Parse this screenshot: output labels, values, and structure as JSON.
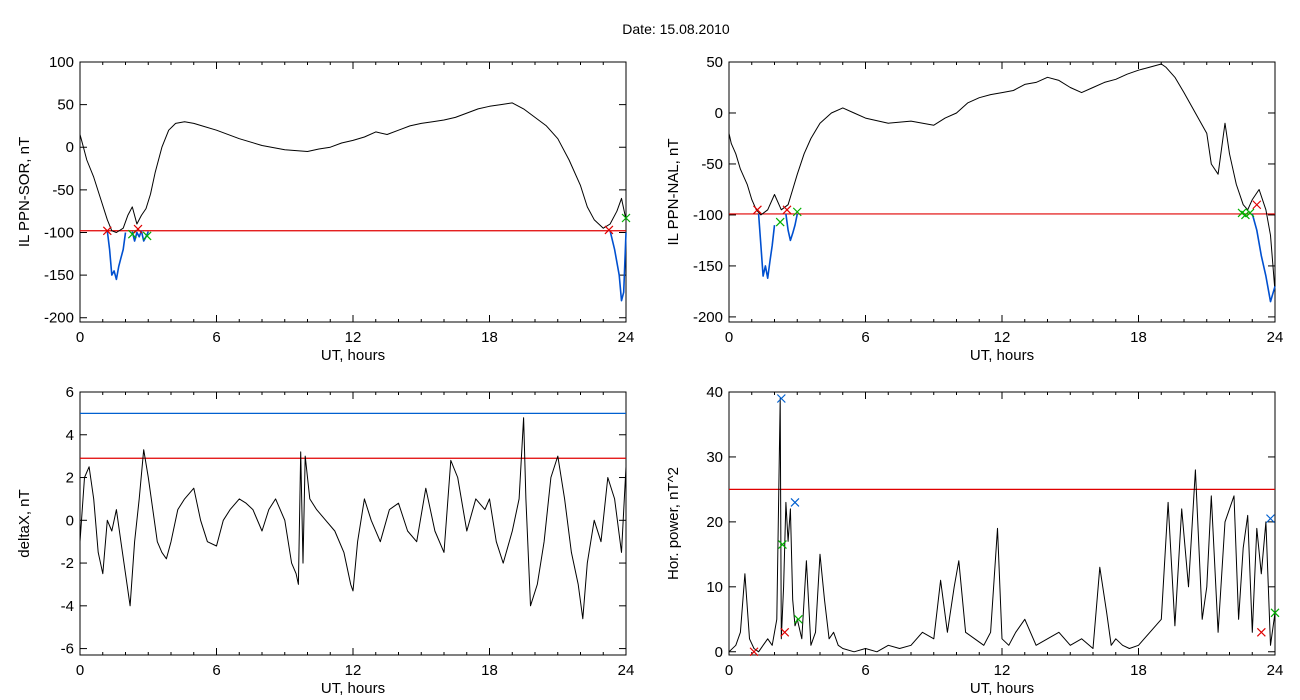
{
  "figure": {
    "title": "Date:  15.08.2010"
  },
  "chart_data": [
    {
      "type": "line",
      "ylabel": "IL PPN-SOR, nT",
      "xlabel": "UT, hours",
      "xlim": [
        0,
        24
      ],
      "ylim": [
        -205,
        100
      ],
      "xticks": [
        0,
        6,
        12,
        18,
        24
      ],
      "yticks": [
        100,
        50,
        0,
        -50,
        -100,
        -150,
        -200
      ],
      "hlines": [
        {
          "y": -98,
          "color": "#e00000"
        }
      ],
      "series": [
        {
          "color": "#000000",
          "x": [
            0,
            0.1,
            0.3,
            0.6,
            0.9,
            1.2,
            1.4,
            1.6,
            1.9,
            2.1,
            2.3,
            2.5,
            2.7,
            2.9,
            3.1,
            3.3,
            3.6,
            3.9,
            4.2,
            4.6,
            5,
            6,
            7,
            8,
            9,
            10,
            10.5,
            11,
            11.5,
            12,
            12.5,
            13,
            13.5,
            14,
            14.5,
            15,
            15.5,
            16,
            16.5,
            17,
            17.5,
            18,
            18.5,
            19,
            19.5,
            20,
            20.5,
            21,
            21.5,
            22,
            22.3,
            22.6,
            23,
            23.3,
            23.6,
            23.8,
            24
          ],
          "y": [
            15,
            5,
            -15,
            -35,
            -60,
            -85,
            -98,
            -100,
            -95,
            -80,
            -70,
            -90,
            -80,
            -72,
            -55,
            -30,
            0,
            20,
            28,
            30,
            28,
            20,
            10,
            2,
            -3,
            -5,
            -2,
            0,
            5,
            8,
            12,
            18,
            15,
            20,
            25,
            28,
            30,
            32,
            35,
            40,
            45,
            48,
            50,
            52,
            45,
            35,
            25,
            10,
            -15,
            -45,
            -70,
            -85,
            -95,
            -90,
            -75,
            -60,
            -85
          ]
        },
        {
          "color": "#0050d0",
          "x": [
            1.2,
            1.3,
            1.4,
            1.5,
            1.6,
            1.7,
            1.8,
            1.9,
            2.0
          ],
          "y": [
            -98,
            -120,
            -150,
            -145,
            -155,
            -140,
            -130,
            -120,
            -100
          ]
        },
        {
          "color": "#0050d0",
          "x": [
            2.3,
            2.4,
            2.5,
            2.6,
            2.7
          ],
          "y": [
            -99,
            -110,
            -100,
            -105,
            -98
          ]
        },
        {
          "color": "#0050d0",
          "x": [
            2.7,
            2.8,
            2.9,
            3.0
          ],
          "y": [
            -98,
            -110,
            -105,
            -99
          ]
        },
        {
          "color": "#0050d0",
          "x": [
            23.3,
            23.5,
            23.7,
            23.8,
            23.9,
            24
          ],
          "y": [
            -98,
            -120,
            -150,
            -180,
            -170,
            -100
          ]
        }
      ],
      "markers": [
        {
          "x": 1.2,
          "y": -98,
          "color": "#e00000"
        },
        {
          "x": 2.3,
          "y": -102,
          "color": "#00b000"
        },
        {
          "x": 2.55,
          "y": -96,
          "color": "#e00000"
        },
        {
          "x": 2.95,
          "y": -104,
          "color": "#00b000"
        },
        {
          "x": 23.25,
          "y": -97,
          "color": "#e00000"
        },
        {
          "x": 24,
          "y": -83,
          "color": "#00b000"
        }
      ]
    },
    {
      "type": "line",
      "ylabel": "IL PPN-NAL, nT",
      "xlabel": "UT, hours",
      "xlim": [
        0,
        24
      ],
      "ylim": [
        -205,
        50
      ],
      "xticks": [
        0,
        6,
        12,
        18,
        24
      ],
      "yticks": [
        50,
        0,
        -50,
        -100,
        -150,
        -200
      ],
      "hlines": [
        {
          "y": -99,
          "color": "#e00000"
        }
      ],
      "series": [
        {
          "color": "#000000",
          "x": [
            0,
            0.1,
            0.3,
            0.5,
            0.8,
            1.0,
            1.2,
            1.4,
            1.7,
            2.0,
            2.3,
            2.6,
            2.8,
            3.0,
            3.3,
            3.6,
            4,
            4.5,
            5,
            5.5,
            6,
            7,
            8,
            9,
            9.5,
            10,
            10.5,
            11,
            11.5,
            12,
            12.5,
            13,
            13.5,
            14,
            14.5,
            15,
            15.5,
            16,
            16.5,
            17,
            17.5,
            18,
            18.5,
            19,
            19.2,
            19.6,
            20,
            20.5,
            21,
            21.2,
            21.5,
            21.8,
            22,
            22.3,
            22.6,
            22.8,
            23,
            23.3,
            23.6,
            23.8,
            24
          ],
          "y": [
            -20,
            -30,
            -40,
            -55,
            -70,
            -85,
            -95,
            -100,
            -95,
            -80,
            -95,
            -90,
            -75,
            -60,
            -40,
            -25,
            -10,
            0,
            5,
            0,
            -5,
            -10,
            -8,
            -12,
            -5,
            0,
            10,
            15,
            18,
            20,
            22,
            28,
            30,
            35,
            32,
            25,
            20,
            25,
            30,
            33,
            38,
            42,
            45,
            48,
            45,
            35,
            20,
            0,
            -20,
            -50,
            -60,
            -10,
            -40,
            -70,
            -90,
            -95,
            -85,
            -75,
            -95,
            -120,
            -175
          ]
        },
        {
          "color": "#0050d0",
          "x": [
            1.3,
            1.4,
            1.5,
            1.6,
            1.7,
            1.8,
            1.9,
            2.0
          ],
          "y": [
            -99,
            -130,
            -160,
            -150,
            -162,
            -145,
            -130,
            -110
          ]
        },
        {
          "color": "#0050d0",
          "x": [
            2.5,
            2.6,
            2.7,
            2.8,
            2.9,
            3.0
          ],
          "y": [
            -99,
            -115,
            -125,
            -118,
            -110,
            -99
          ]
        },
        {
          "color": "#0050d0",
          "x": [
            23.0,
            23.2,
            23.4,
            23.6,
            23.8,
            24
          ],
          "y": [
            -99,
            -115,
            -140,
            -160,
            -185,
            -170
          ]
        }
      ],
      "markers": [
        {
          "x": 1.25,
          "y": -95,
          "color": "#e00000"
        },
        {
          "x": 2.25,
          "y": -107,
          "color": "#00b000"
        },
        {
          "x": 2.55,
          "y": -95,
          "color": "#e00000"
        },
        {
          "x": 3.0,
          "y": -97,
          "color": "#00b000"
        },
        {
          "x": 22.55,
          "y": -98,
          "color": "#00b000"
        },
        {
          "x": 22.7,
          "y": -100,
          "color": "#00b000"
        },
        {
          "x": 22.9,
          "y": -98,
          "color": "#00b000"
        },
        {
          "x": 23.2,
          "y": -90,
          "color": "#e00000"
        }
      ]
    },
    {
      "type": "line",
      "ylabel": "deltaX, nT",
      "xlabel": "UT, hours",
      "xlim": [
        0,
        24
      ],
      "ylim": [
        -6.3,
        6
      ],
      "xticks": [
        0,
        6,
        12,
        18,
        24
      ],
      "yticks": [
        6,
        4,
        2,
        0,
        -2,
        -4,
        -6
      ],
      "hlines": [
        {
          "y": 5.0,
          "color": "#0060d0"
        },
        {
          "y": 2.9,
          "color": "#e00000"
        }
      ],
      "series": [
        {
          "color": "#000000",
          "x": [
            0,
            0.2,
            0.4,
            0.6,
            0.8,
            1.0,
            1.2,
            1.4,
            1.6,
            1.8,
            2.0,
            2.2,
            2.4,
            2.6,
            2.8,
            3.0,
            3.2,
            3.4,
            3.6,
            3.8,
            4.0,
            4.3,
            4.6,
            5.0,
            5.3,
            5.6,
            6.0,
            6.3,
            6.6,
            7.0,
            7.3,
            7.6,
            8.0,
            8.3,
            8.6,
            9.0,
            9.3,
            9.5,
            9.6,
            9.7,
            9.8,
            9.9,
            10.1,
            10.4,
            10.8,
            11.2,
            11.6,
            11.9,
            12.0,
            12.2,
            12.5,
            12.8,
            13.2,
            13.6,
            14.0,
            14.4,
            14.8,
            15.2,
            15.6,
            16.0,
            16.3,
            16.6,
            17.0,
            17.4,
            17.8,
            18.0,
            18.3,
            18.6,
            19.0,
            19.3,
            19.5,
            19.6,
            19.8,
            20.1,
            20.4,
            20.7,
            21.0,
            21.3,
            21.6,
            21.9,
            22.1,
            22.3,
            22.6,
            22.9,
            23.2,
            23.5,
            23.8,
            24
          ],
          "y": [
            -1,
            2,
            2.5,
            1,
            -1.5,
            -2.5,
            0,
            -0.5,
            0.5,
            -1,
            -2.5,
            -4,
            -1,
            1,
            3.3,
            2,
            0.5,
            -1,
            -1.5,
            -1.8,
            -1,
            0.5,
            1,
            1.5,
            0,
            -1,
            -1.2,
            0,
            0.5,
            1,
            0.8,
            0.5,
            -0.5,
            0.5,
            1,
            0,
            -2,
            -2.5,
            -3,
            3.2,
            -2,
            3,
            1,
            0.5,
            0,
            -0.5,
            -1.5,
            -3,
            -3.3,
            -1,
            1,
            0,
            -1,
            0.5,
            0.8,
            -0.5,
            -1,
            1.5,
            -0.5,
            -1.5,
            2.8,
            2,
            -0.5,
            1,
            0.5,
            1,
            -1,
            -2,
            -0.5,
            1,
            4.8,
            1,
            -4,
            -3,
            -1,
            2,
            3,
            1,
            -1.5,
            -3,
            -4.6,
            -2,
            0,
            -1,
            2,
            1,
            -1.5,
            2.5
          ]
        }
      ],
      "markers": []
    },
    {
      "type": "line",
      "ylabel": "Hor. power, nT^2",
      "xlabel": "UT, hours",
      "xlim": [
        0,
        24
      ],
      "ylim": [
        -0.5,
        40
      ],
      "xticks": [
        0,
        6,
        12,
        18,
        24
      ],
      "yticks": [
        40,
        30,
        20,
        10,
        0
      ],
      "hlines": [
        {
          "y": 25,
          "color": "#e00000"
        }
      ],
      "series": [
        {
          "color": "#000000",
          "x": [
            0,
            0.3,
            0.5,
            0.7,
            0.9,
            1.1,
            1.3,
            1.5,
            1.7,
            1.9,
            2.1,
            2.25,
            2.3,
            2.4,
            2.5,
            2.6,
            2.7,
            2.8,
            2.9,
            3.0,
            3.2,
            3.4,
            3.6,
            3.8,
            4.0,
            4.2,
            4.4,
            4.6,
            4.8,
            5.0,
            5.5,
            6,
            6.5,
            7,
            7.5,
            8,
            8.5,
            9,
            9.3,
            9.6,
            9.9,
            10.1,
            10.4,
            10.8,
            11.2,
            11.5,
            11.8,
            12.0,
            12.3,
            12.6,
            13,
            13.5,
            14,
            14.5,
            15,
            15.5,
            16,
            16.3,
            16.6,
            16.8,
            17.0,
            17.3,
            17.6,
            18,
            18.5,
            19.0,
            19.3,
            19.6,
            19.9,
            20.2,
            20.5,
            20.8,
            21.0,
            21.2,
            21.5,
            21.8,
            22.0,
            22.2,
            22.4,
            22.6,
            22.8,
            23.0,
            23.2,
            23.4,
            23.6,
            23.8,
            24
          ],
          "y": [
            0,
            1,
            3,
            12,
            2,
            0.5,
            0,
            1,
            2,
            1,
            5,
            39,
            2,
            10,
            23,
            17,
            22,
            8,
            4,
            5,
            2,
            14,
            1,
            3,
            15,
            8,
            2,
            3,
            1,
            0.5,
            0,
            0.5,
            0,
            1,
            0.5,
            1,
            3,
            2,
            11,
            3,
            10,
            14,
            3,
            2,
            1,
            3,
            19,
            2,
            1,
            3,
            5,
            1,
            2,
            3,
            1,
            2,
            0.5,
            13,
            6,
            1,
            2,
            1,
            0.5,
            1,
            3,
            5,
            23,
            4,
            22,
            10,
            28,
            5,
            10,
            24,
            3,
            20,
            22,
            24,
            5,
            16,
            21,
            3,
            19,
            12,
            20,
            1,
            6
          ]
        }
      ],
      "markers": [
        {
          "x": 1.1,
          "y": 0,
          "color": "#e00000"
        },
        {
          "x": 2.3,
          "y": 39,
          "color": "#0060d0"
        },
        {
          "x": 2.35,
          "y": 16.5,
          "color": "#00b000"
        },
        {
          "x": 2.45,
          "y": 3,
          "color": "#e00000"
        },
        {
          "x": 2.9,
          "y": 23,
          "color": "#0060d0"
        },
        {
          "x": 3.05,
          "y": 5,
          "color": "#00b000"
        },
        {
          "x": 23.4,
          "y": 3,
          "color": "#e00000"
        },
        {
          "x": 23.8,
          "y": 20.5,
          "color": "#0060d0"
        },
        {
          "x": 24,
          "y": 6,
          "color": "#00b000"
        }
      ]
    }
  ]
}
